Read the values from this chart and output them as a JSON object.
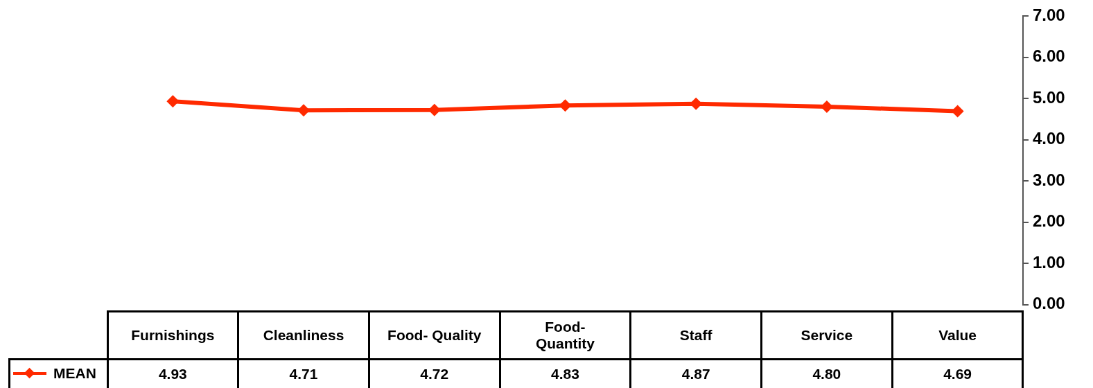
{
  "chart_data": {
    "type": "line",
    "categories": [
      "Furnishings",
      "Cleanliness",
      "Food- Quality",
      "Food-\nQuantity",
      "Staff",
      "Service",
      "Value"
    ],
    "series": [
      {
        "name": "MEAN",
        "color": "#ff2a00",
        "values": [
          4.93,
          4.71,
          4.72,
          4.83,
          4.87,
          4.8,
          4.69
        ],
        "value_labels": [
          "4.93",
          "4.71",
          "4.72",
          "4.83",
          "4.87",
          "4.80",
          "4.69"
        ]
      }
    ],
    "ylim": [
      0,
      7
    ],
    "yticks": [
      {
        "value": 0,
        "label": "0.00"
      },
      {
        "value": 1,
        "label": "1.00"
      },
      {
        "value": 2,
        "label": "2.00"
      },
      {
        "value": 3,
        "label": "3.00"
      },
      {
        "value": 4,
        "label": "4.00"
      },
      {
        "value": 5,
        "label": "5.00"
      },
      {
        "value": 6,
        "label": "6.00"
      },
      {
        "value": 7,
        "label": "7.00"
      }
    ],
    "grid": false,
    "legend": "bottom left",
    "marker": "diamond",
    "line_style": "solid"
  }
}
